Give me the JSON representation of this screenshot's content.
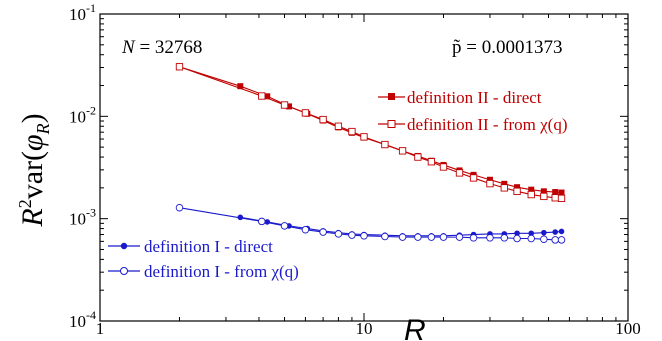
{
  "chart_data": {
    "type": "scatter",
    "xscale": "log",
    "yscale": "log",
    "xlim": [
      1,
      100
    ],
    "ylim": [
      0.0001,
      0.1
    ],
    "xlabel": "R",
    "ylabel": "R²var(φR)",
    "x_ticks": [
      {
        "value": 1,
        "label": "1"
      },
      {
        "value": 10,
        "label": "10"
      },
      {
        "value": 100,
        "label": "100"
      }
    ],
    "y_ticks": [
      {
        "value": 0.0001,
        "mant": "10",
        "exp": "-4"
      },
      {
        "value": 0.001,
        "mant": "10",
        "exp": "-3"
      },
      {
        "value": 0.01,
        "mant": "10",
        "exp": "-2"
      },
      {
        "value": 0.1,
        "mant": "10",
        "exp": "-1"
      }
    ],
    "annotations": {
      "n_label": "N = 32768",
      "p_label": "p̃ = 0.0001373"
    },
    "series": [
      {
        "name": "definition II - direct",
        "color": "#c00000",
        "marker": "filled-square",
        "x": [
          2,
          3.4,
          4.3,
          5.2,
          6.1,
          7,
          8,
          9,
          10,
          12,
          14,
          16,
          18,
          20,
          23,
          26,
          30,
          34,
          38,
          43,
          48,
          53,
          56
        ],
        "y": [
          0.0305,
          0.0197,
          0.0157,
          0.0125,
          0.0106,
          0.0091,
          0.0078,
          0.0069,
          0.0062,
          0.0053,
          0.0046,
          0.0041,
          0.00368,
          0.00335,
          0.00296,
          0.00268,
          0.0024,
          0.00219,
          0.00203,
          0.00192,
          0.00185,
          0.00182,
          0.0018
        ]
      },
      {
        "name": "definition II - from χ(q)",
        "color": "#c00000",
        "marker": "open-square",
        "x": [
          2,
          4.1,
          5,
          6,
          7,
          8,
          9,
          10,
          12,
          14,
          16,
          18,
          20,
          23,
          26,
          30,
          34,
          38,
          43,
          48,
          53,
          56
        ],
        "y": [
          0.0305,
          0.0158,
          0.0129,
          0.0108,
          0.0093,
          0.008,
          0.0071,
          0.0063,
          0.0053,
          0.0046,
          0.004,
          0.0036,
          0.0032,
          0.0028,
          0.0025,
          0.0022,
          0.002,
          0.00185,
          0.00172,
          0.00165,
          0.0016,
          0.00158
        ]
      },
      {
        "name": "definition I - direct",
        "color": "#1a1acc",
        "marker": "filled-circle",
        "x": [
          3.4,
          4.3,
          5.2,
          6.1,
          7,
          8,
          9,
          10,
          12,
          14,
          16,
          18,
          20,
          23,
          26,
          30,
          34,
          38,
          43,
          48,
          53,
          56
        ],
        "y": [
          0.00103,
          0.00093,
          0.00085,
          0.0008,
          0.00076,
          0.00073,
          0.00071,
          0.0007,
          0.00069,
          0.00068,
          0.00068,
          0.00068,
          0.00068,
          0.00069,
          0.0007,
          0.00071,
          0.00071,
          0.00072,
          0.00072,
          0.00073,
          0.00074,
          0.00075
        ]
      },
      {
        "name": "definition I - from χ(q)",
        "color": "#1a1acc",
        "marker": "open-circle",
        "x": [
          2,
          4.1,
          5,
          6,
          7,
          8,
          9,
          10,
          12,
          14,
          16,
          18,
          20,
          23,
          26,
          30,
          34,
          38,
          43,
          48,
          53,
          56
        ],
        "y": [
          0.00128,
          0.00094,
          0.00085,
          0.00078,
          0.00074,
          0.00071,
          0.00069,
          0.00068,
          0.00067,
          0.00066,
          0.00066,
          0.00066,
          0.00066,
          0.00066,
          0.00065,
          0.00065,
          0.00065,
          0.00064,
          0.00064,
          0.00063,
          0.00062,
          0.00062
        ]
      }
    ]
  }
}
